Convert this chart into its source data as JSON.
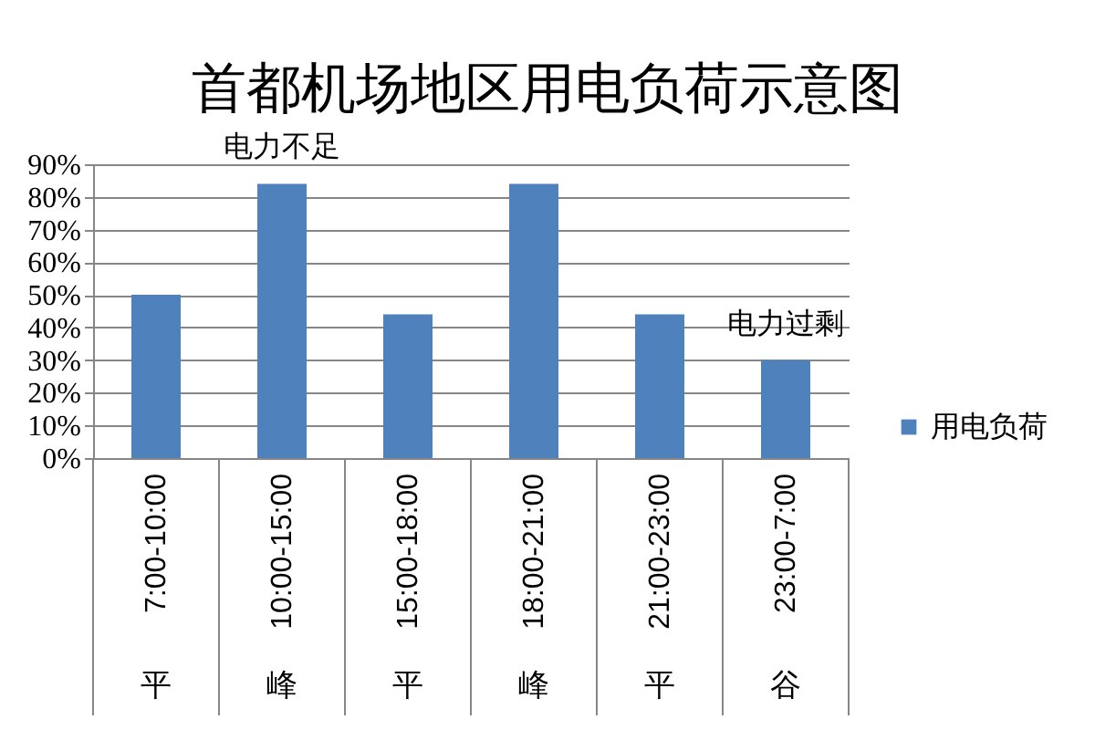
{
  "chart_data": {
    "type": "bar",
    "title": "首都机场地区用电负荷示意图",
    "categories": [
      "7:00-10:00",
      "10:00-15:00",
      "15:00-18:00",
      "18:00-21:00",
      "21:00-23:00",
      "23:00-7:00"
    ],
    "series": [
      {
        "name": "用电负荷",
        "color": "#4f81bd",
        "values": [
          50,
          84,
          44,
          84,
          44,
          30
        ]
      }
    ],
    "ylim": [
      0,
      90
    ],
    "yticks": [
      {
        "value": 0,
        "label": "0%"
      },
      {
        "value": 10,
        "label": "10%"
      },
      {
        "value": 20,
        "label": "20%"
      },
      {
        "value": 30,
        "label": "30%"
      },
      {
        "value": 40,
        "label": "40%"
      },
      {
        "value": 50,
        "label": "50%"
      },
      {
        "value": 60,
        "label": "60%"
      },
      {
        "value": 70,
        "label": "70%"
      },
      {
        "value": 80,
        "label": "80%"
      },
      {
        "value": 90,
        "label": "90%"
      }
    ],
    "grid": "y",
    "legend": "right",
    "annotations": [
      {
        "text": "电力不足",
        "x": "10:00-15:00",
        "y": 84
      },
      {
        "text": "电力过剩",
        "x": "23:00-7:00",
        "y": 30
      },
      "平",
      "峰",
      "平",
      "峰",
      "平",
      "谷"
    ]
  }
}
